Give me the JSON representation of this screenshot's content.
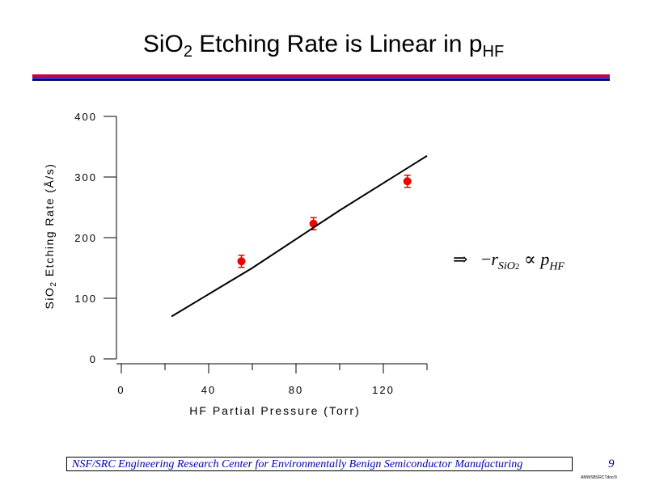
{
  "slide": {
    "title_main": "SiO",
    "title_sub": "2",
    "title_rest": " Etching Rate is Linear in p",
    "title_sub2": "HF",
    "rule_colors": [
      "#cc0033",
      "#3333cc",
      "#000066"
    ],
    "equation": {
      "arrow": "⇒",
      "minus": "−",
      "r": "r",
      "r_sub": "SiO",
      "r_subsub": "2",
      "prop": "∝",
      "p": "p",
      "p_sub": "HF"
    },
    "footer": "NSF/SRC Engineering Research Center for Environmentally Benign Semiconductor Manufacturing",
    "page_number": "9",
    "doc_id": "AMWSBSRCTdoc/9"
  },
  "chart_data": {
    "type": "scatter",
    "xlabel": "HF Partial Pressure (Torr)",
    "ylabel_main": "SiO",
    "ylabel_sub": "2",
    "ylabel_rest": " Etching Rate (Å/s)",
    "xlim": [
      0,
      140
    ],
    "ylim": [
      0,
      400
    ],
    "x_ticks": [
      0,
      40,
      80,
      120
    ],
    "y_ticks": [
      0,
      100,
      200,
      300,
      400
    ],
    "x_minor_ticks": [
      20,
      60,
      100,
      140
    ],
    "series": [
      {
        "kind": "points",
        "color": "#ee0000",
        "points": [
          {
            "x": 55,
            "y": 161,
            "err": 10
          },
          {
            "x": 88,
            "y": 223,
            "err": 10
          },
          {
            "x": 131,
            "y": 293,
            "err": 10
          }
        ]
      },
      {
        "kind": "line",
        "color": "#000000",
        "points": [
          {
            "x": 23,
            "y": 70
          },
          {
            "x": 60,
            "y": 150
          },
          {
            "x": 100,
            "y": 245
          },
          {
            "x": 140,
            "y": 335
          }
        ]
      }
    ]
  }
}
